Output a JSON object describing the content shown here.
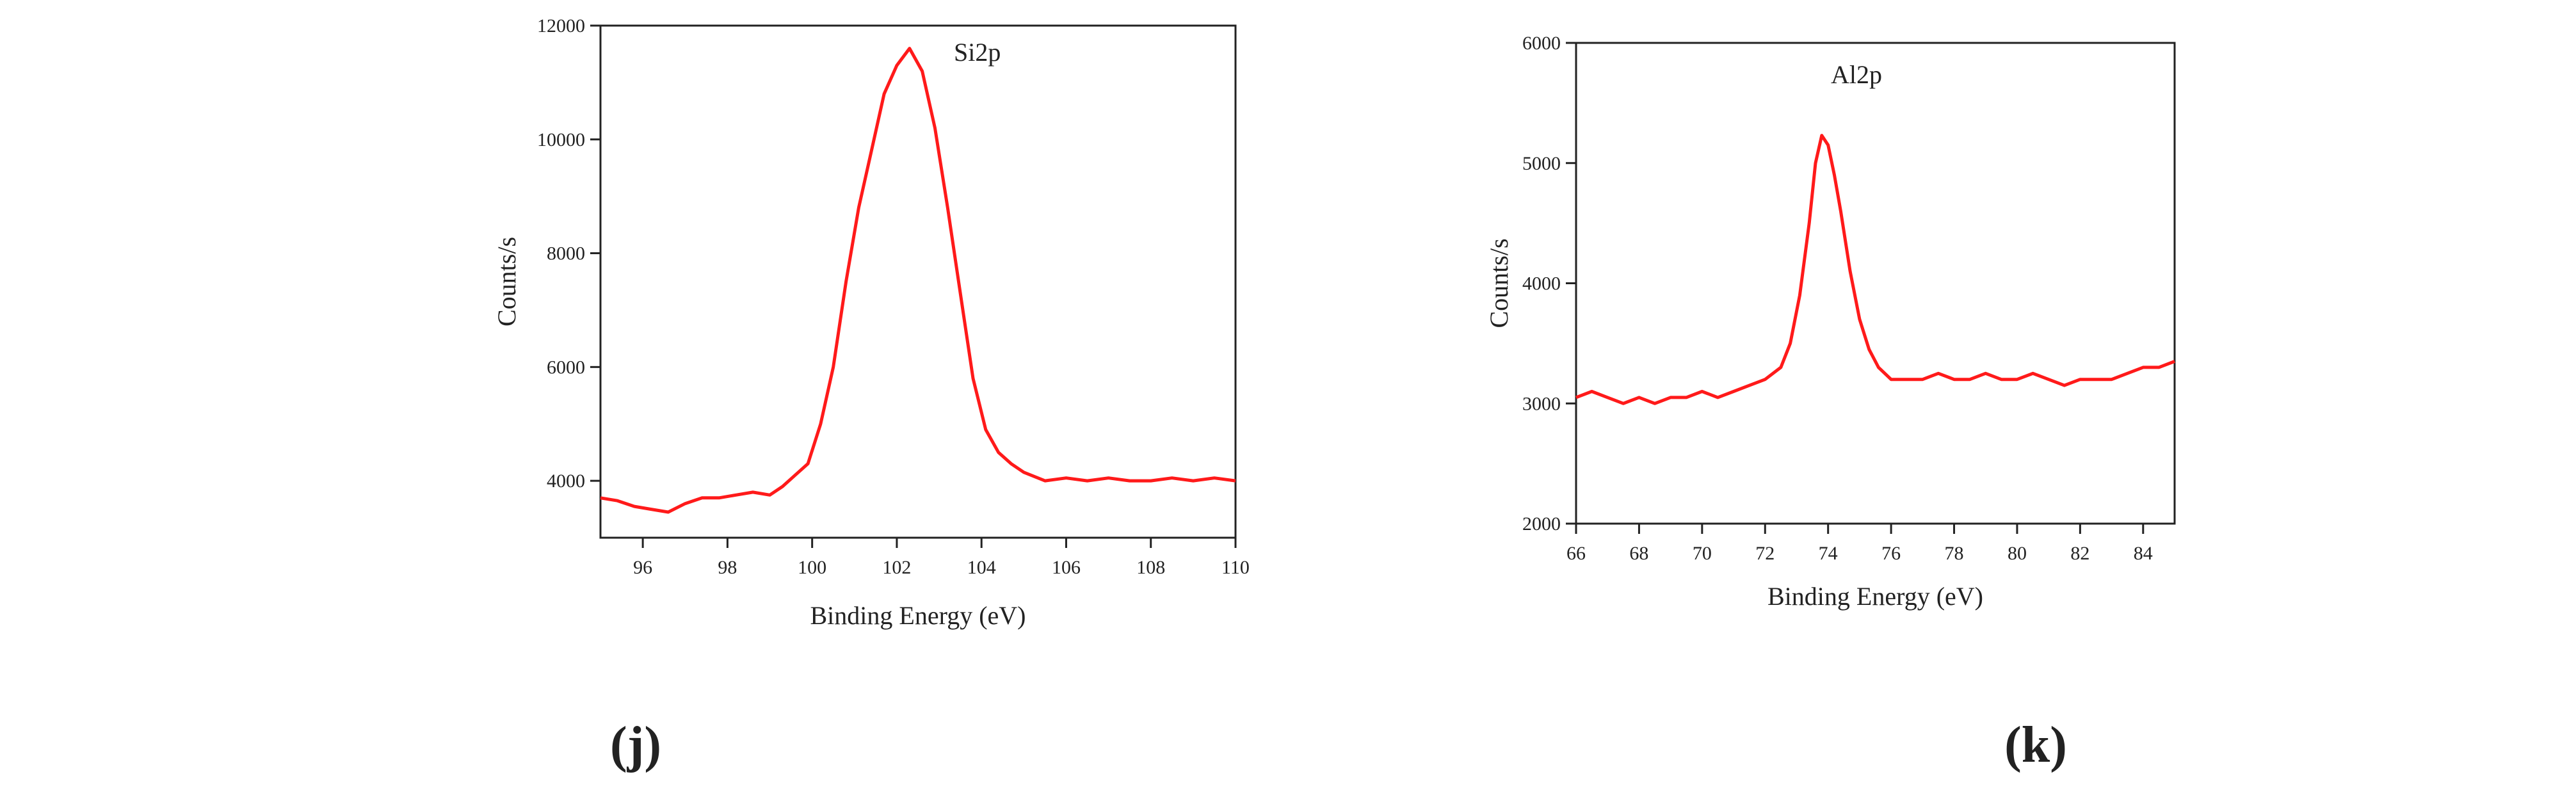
{
  "chart_data": [
    {
      "panel": "(j)",
      "type": "line",
      "annotation": "Si2p",
      "xlabel": "Binding Energy (eV)",
      "ylabel": "Counts/s",
      "xlim": [
        95,
        110
      ],
      "ylim": [
        3000,
        12000
      ],
      "xticks": [
        96,
        98,
        100,
        102,
        104,
        106,
        108,
        110
      ],
      "yticks": [
        4000,
        6000,
        8000,
        10000,
        12000
      ],
      "grid": false,
      "series_color": "#ff1a1a",
      "series": [
        {
          "name": "Si2p",
          "points": [
            [
              95.0,
              3700
            ],
            [
              95.4,
              3650
            ],
            [
              95.8,
              3550
            ],
            [
              96.2,
              3500
            ],
            [
              96.6,
              3450
            ],
            [
              97.0,
              3600
            ],
            [
              97.4,
              3700
            ],
            [
              97.8,
              3700
            ],
            [
              98.2,
              3750
            ],
            [
              98.6,
              3800
            ],
            [
              99.0,
              3750
            ],
            [
              99.3,
              3900
            ],
            [
              99.6,
              4100
            ],
            [
              99.9,
              4300
            ],
            [
              100.2,
              5000
            ],
            [
              100.5,
              6000
            ],
            [
              100.8,
              7500
            ],
            [
              101.1,
              8800
            ],
            [
              101.4,
              9800
            ],
            [
              101.7,
              10800
            ],
            [
              102.0,
              11300
            ],
            [
              102.3,
              11600
            ],
            [
              102.6,
              11200
            ],
            [
              102.9,
              10200
            ],
            [
              103.2,
              8800
            ],
            [
              103.5,
              7300
            ],
            [
              103.8,
              5800
            ],
            [
              104.1,
              4900
            ],
            [
              104.4,
              4500
            ],
            [
              104.7,
              4300
            ],
            [
              105.0,
              4150
            ],
            [
              105.5,
              4000
            ],
            [
              106.0,
              4050
            ],
            [
              106.5,
              4000
            ],
            [
              107.0,
              4050
            ],
            [
              107.5,
              4000
            ],
            [
              108.0,
              4000
            ],
            [
              108.5,
              4050
            ],
            [
              109.0,
              4000
            ],
            [
              109.5,
              4050
            ],
            [
              110.0,
              4000
            ]
          ]
        }
      ]
    },
    {
      "panel": "(k)",
      "type": "line",
      "annotation": "Al2p",
      "xlabel": "Binding Energy (eV)",
      "ylabel": "Counts/s",
      "xlim": [
        66,
        85
      ],
      "ylim": [
        2000,
        6000
      ],
      "xticks": [
        66,
        68,
        70,
        72,
        74,
        76,
        78,
        80,
        82,
        84
      ],
      "yticks": [
        2000,
        3000,
        4000,
        5000,
        6000
      ],
      "grid": false,
      "series_color": "#ff1a1a",
      "series": [
        {
          "name": "Al2p",
          "points": [
            [
              66.0,
              3050
            ],
            [
              66.5,
              3100
            ],
            [
              67.0,
              3050
            ],
            [
              67.5,
              3000
            ],
            [
              68.0,
              3050
            ],
            [
              68.5,
              3000
            ],
            [
              69.0,
              3050
            ],
            [
              69.5,
              3050
            ],
            [
              70.0,
              3100
            ],
            [
              70.5,
              3050
            ],
            [
              71.0,
              3100
            ],
            [
              71.5,
              3150
            ],
            [
              72.0,
              3200
            ],
            [
              72.5,
              3300
            ],
            [
              72.8,
              3500
            ],
            [
              73.1,
              3900
            ],
            [
              73.4,
              4500
            ],
            [
              73.6,
              5000
            ],
            [
              73.8,
              5230
            ],
            [
              74.0,
              5150
            ],
            [
              74.2,
              4900
            ],
            [
              74.4,
              4600
            ],
            [
              74.7,
              4100
            ],
            [
              75.0,
              3700
            ],
            [
              75.3,
              3450
            ],
            [
              75.6,
              3300
            ],
            [
              76.0,
              3200
            ],
            [
              76.5,
              3200
            ],
            [
              77.0,
              3200
            ],
            [
              77.5,
              3250
            ],
            [
              78.0,
              3200
            ],
            [
              78.5,
              3200
            ],
            [
              79.0,
              3250
            ],
            [
              79.5,
              3200
            ],
            [
              80.0,
              3200
            ],
            [
              80.5,
              3250
            ],
            [
              81.0,
              3200
            ],
            [
              81.5,
              3150
            ],
            [
              82.0,
              3200
            ],
            [
              82.5,
              3200
            ],
            [
              83.0,
              3200
            ],
            [
              83.5,
              3250
            ],
            [
              84.0,
              3300
            ],
            [
              84.5,
              3300
            ],
            [
              85.0,
              3350
            ]
          ]
        }
      ]
    }
  ]
}
